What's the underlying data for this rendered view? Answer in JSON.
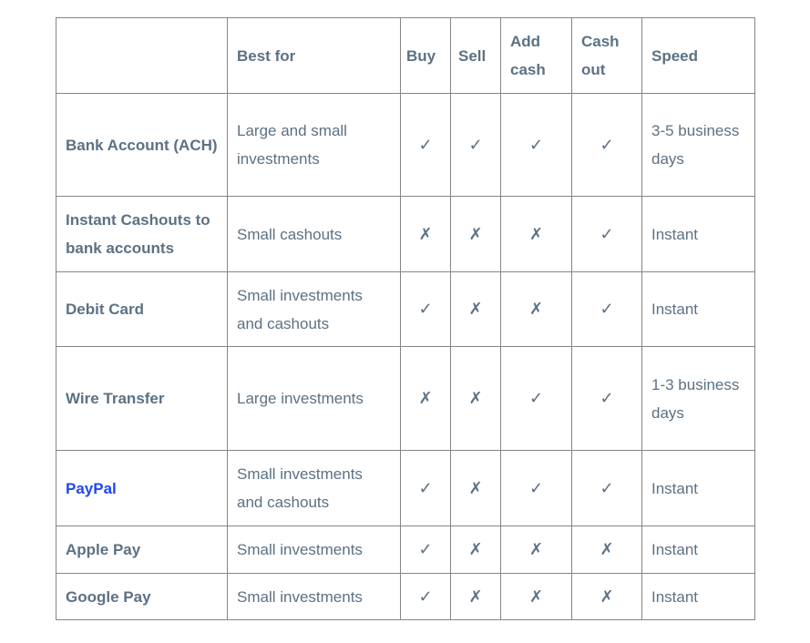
{
  "headers": [
    "",
    "Best for",
    "Buy",
    "Sell",
    "Add cash",
    "Cash out",
    "Speed"
  ],
  "rows": [
    {
      "name": "Bank Account (ACH)",
      "best_for": "Large and small investments",
      "buy": "✓",
      "sell": "✓",
      "add_cash": "✓",
      "cash_out": "✓",
      "speed": "3-5 business days",
      "link": false
    },
    {
      "name": "Instant Cashouts to bank accounts",
      "best_for": "Small cashouts",
      "buy": "✗",
      "sell": "✗",
      "add_cash": "✗",
      "cash_out": "✓",
      "speed": "Instant",
      "link": false
    },
    {
      "name": "Debit Card",
      "best_for": "Small investments and cashouts",
      "buy": "✓",
      "sell": "✗",
      "add_cash": "✗",
      "cash_out": "✓",
      "speed": "Instant",
      "link": false
    },
    {
      "name": "Wire Transfer",
      "best_for": "Large investments",
      "buy": "✗",
      "sell": "✗",
      "add_cash": "✓",
      "cash_out": "✓",
      "speed": "1-3 business days",
      "link": false
    },
    {
      "name": "PayPal",
      "best_for": "Small investments and cashouts",
      "buy": "✓",
      "sell": "✗",
      "add_cash": "✓",
      "cash_out": "✓",
      "speed": "Instant",
      "link": true
    },
    {
      "name": "Apple Pay",
      "best_for": "Small investments",
      "buy": "✓",
      "sell": "✗",
      "add_cash": "✗",
      "cash_out": "✗",
      "speed": "Instant",
      "link": false
    },
    {
      "name": "Google Pay",
      "best_for": "Small investments",
      "buy": "✓",
      "sell": "✗",
      "add_cash": "✗",
      "cash_out": "✗",
      "speed": "Instant",
      "link": false
    }
  ],
  "colors": {
    "text": "#5c7184",
    "link": "#1f47f5",
    "border": "#858585"
  }
}
